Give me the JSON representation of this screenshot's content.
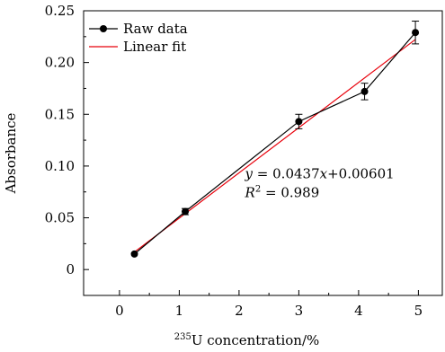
{
  "chart_data": {
    "type": "scatter",
    "xlabel_sup": "235",
    "xlabel": "U concentration/%",
    "ylabel": "Absorbance",
    "xlim": [
      -0.6,
      5.4
    ],
    "ylim": [
      -0.025,
      0.25
    ],
    "xticks": [
      0,
      1,
      2,
      3,
      4,
      5
    ],
    "xtick_labels": [
      "0",
      "1",
      "2",
      "3",
      "4",
      "5"
    ],
    "yticks": [
      0,
      0.05,
      0.1,
      0.15,
      0.2,
      0.25
    ],
    "ytick_labels": [
      "0",
      "0.05",
      "0.10",
      "0.15",
      "0.20",
      "0.25"
    ],
    "grid": false,
    "legend_position": "top-left",
    "series": [
      {
        "name": "Raw data",
        "kind": "line-marker",
        "color": "#000000",
        "x": [
          0.25,
          1.1,
          3.0,
          4.1,
          4.95
        ],
        "y": [
          0.015,
          0.056,
          0.143,
          0.172,
          0.229
        ],
        "err": [
          0.002,
          0.003,
          0.007,
          0.008,
          0.011
        ]
      },
      {
        "name": "Linear fit",
        "kind": "line",
        "color": "#e8000b",
        "x": [
          0.25,
          4.95
        ],
        "y": [
          0.0169,
          0.2223
        ]
      }
    ],
    "annotation": {
      "eq_y": "y",
      "eq_rhs_1": " = 0.0437",
      "eq_x": "x",
      "eq_rhs_2": "+0.00601",
      "r_label": "R",
      "r_sup": "2",
      "r_value": " = 0.989",
      "anchor": [
        2.1,
        0.088
      ]
    }
  }
}
